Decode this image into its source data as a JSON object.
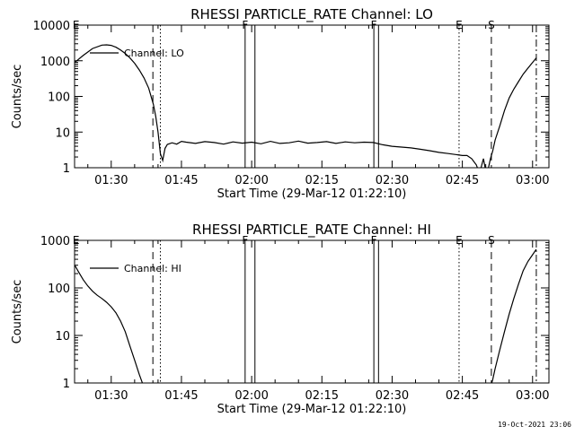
{
  "footer_timestamp": "19-Oct-2021 23:06",
  "chart_data": [
    {
      "type": "line",
      "title": "RHESSI PARTICLE_RATE Channel: LO",
      "xlabel": "Start Time (29-Mar-12 01:22:10)",
      "ylabel": "Counts/sec",
      "yscale": "log",
      "xlim": [
        82.17,
        183.5
      ],
      "ylim": [
        1,
        10000
      ],
      "x_ticks": [
        {
          "v": 90,
          "label": "01:30"
        },
        {
          "v": 105,
          "label": "01:45"
        },
        {
          "v": 120,
          "label": "02:00"
        },
        {
          "v": 135,
          "label": "02:15"
        },
        {
          "v": 150,
          "label": "02:30"
        },
        {
          "v": 165,
          "label": "02:45"
        },
        {
          "v": 180,
          "label": "03:00"
        }
      ],
      "y_ticks": [
        {
          "v": 1,
          "label": "1"
        },
        {
          "v": 10,
          "label": "10"
        },
        {
          "v": 100,
          "label": "100"
        },
        {
          "v": 1000,
          "label": "1000"
        },
        {
          "v": 10000,
          "label": "10000"
        }
      ],
      "legend": {
        "position": "top-left",
        "label": "Channel: LO"
      },
      "markers": [
        {
          "x": 82.5,
          "style": "none",
          "label": "E"
        },
        {
          "x": 98.9,
          "style": "dashed",
          "label": ""
        },
        {
          "x": 100.5,
          "style": "dotted",
          "label": ""
        },
        {
          "x": 118.6,
          "style": "solid",
          "label": "F"
        },
        {
          "x": 120.7,
          "style": "solid",
          "label": ""
        },
        {
          "x": 146.1,
          "style": "solid",
          "label": "F"
        },
        {
          "x": 147.1,
          "style": "solid",
          "label": ""
        },
        {
          "x": 164.3,
          "style": "dotted",
          "label": "E"
        },
        {
          "x": 171.2,
          "style": "dashed",
          "label": "S"
        },
        {
          "x": 180.8,
          "style": "dashdot",
          "label": ""
        }
      ],
      "series": [
        {
          "x": [
            82.2,
            84,
            86,
            88,
            89,
            90,
            91,
            92,
            93,
            94,
            95,
            96,
            97,
            98,
            99,
            99.5,
            100,
            100.5,
            101,
            101.5,
            102,
            103,
            104,
            105,
            106,
            108,
            110,
            112,
            114,
            116,
            118,
            120,
            122,
            124,
            126,
            128,
            130,
            132,
            134,
            136,
            138,
            140,
            142,
            144,
            146,
            148,
            150,
            152,
            154,
            156,
            158,
            160,
            162,
            164,
            165,
            166,
            167,
            168,
            168.5,
            169,
            169.5,
            170,
            170.5,
            171,
            171.5,
            172,
            173,
            174,
            175,
            176,
            177,
            178,
            179,
            180,
            180.8
          ],
          "values": [
            900,
            1400,
            2200,
            2750,
            2800,
            2700,
            2400,
            2000,
            1600,
            1200,
            850,
            550,
            330,
            170,
            60,
            28,
            10,
            2.5,
            1.6,
            3.5,
            4.5,
            5,
            4.6,
            5.5,
            5.2,
            4.8,
            5.4,
            5.1,
            4.6,
            5.3,
            4.9,
            5.2,
            4.7,
            5.5,
            4.8,
            5.0,
            5.6,
            4.9,
            5.1,
            5.4,
            4.8,
            5.3,
            5.0,
            5.2,
            5.1,
            4.4,
            4.0,
            3.8,
            3.6,
            3.3,
            3.0,
            2.7,
            2.5,
            2.3,
            2.2,
            2.2,
            1.8,
            1.2,
            0.8,
            1.0,
            1.8,
            0.8,
            0.9,
            1.8,
            3,
            6,
            15,
            40,
            90,
            160,
            260,
            420,
            620,
            900,
            1200
          ]
        }
      ]
    },
    {
      "type": "line",
      "title": "RHESSI PARTICLE_RATE Channel: HI",
      "xlabel": "Start Time (29-Mar-12 01:22:10)",
      "ylabel": "Counts/sec",
      "yscale": "log",
      "xlim": [
        82.17,
        183.5
      ],
      "ylim": [
        1,
        1000
      ],
      "x_ticks": [
        {
          "v": 90,
          "label": "01:30"
        },
        {
          "v": 105,
          "label": "01:45"
        },
        {
          "v": 120,
          "label": "02:00"
        },
        {
          "v": 135,
          "label": "02:15"
        },
        {
          "v": 150,
          "label": "02:30"
        },
        {
          "v": 165,
          "label": "02:45"
        },
        {
          "v": 180,
          "label": "03:00"
        }
      ],
      "y_ticks": [
        {
          "v": 1,
          "label": "1"
        },
        {
          "v": 10,
          "label": "10"
        },
        {
          "v": 100,
          "label": "100"
        },
        {
          "v": 1000,
          "label": "1000"
        }
      ],
      "legend": {
        "position": "top-left",
        "label": "Channel: HI"
      },
      "markers": [
        {
          "x": 82.5,
          "style": "none",
          "label": "E"
        },
        {
          "x": 98.9,
          "style": "dashed",
          "label": ""
        },
        {
          "x": 100.5,
          "style": "dotted",
          "label": ""
        },
        {
          "x": 118.6,
          "style": "solid",
          "label": "F"
        },
        {
          "x": 120.7,
          "style": "solid",
          "label": ""
        },
        {
          "x": 146.1,
          "style": "solid",
          "label": "F"
        },
        {
          "x": 147.1,
          "style": "solid",
          "label": ""
        },
        {
          "x": 164.3,
          "style": "dotted",
          "label": "E"
        },
        {
          "x": 171.2,
          "style": "dashed",
          "label": "S"
        },
        {
          "x": 180.8,
          "style": "dashdot",
          "label": ""
        }
      ],
      "series": [
        {
          "x": [
            82.2,
            83,
            84,
            85,
            86,
            87,
            88,
            89,
            90,
            91,
            92,
            93,
            94,
            95,
            96,
            96.5,
            97,
            171,
            171.5,
            172,
            173,
            174,
            175,
            176,
            177,
            178,
            179,
            180,
            180.8
          ],
          "values": [
            300,
            220,
            150,
            110,
            85,
            70,
            60,
            50,
            40,
            30,
            20,
            12,
            6,
            3,
            1.5,
            1.1,
            0.8,
            0.8,
            1.2,
            2,
            5,
            12,
            28,
            60,
            120,
            230,
            360,
            500,
            650
          ]
        }
      ]
    }
  ]
}
